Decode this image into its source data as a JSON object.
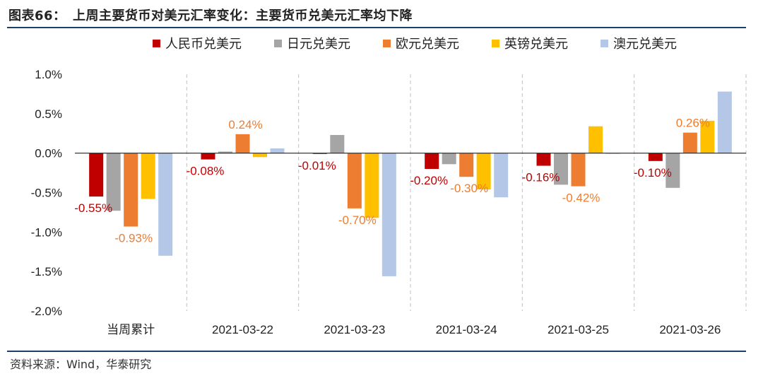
{
  "header": {
    "title": "图表66：　上周主要货币对美元汇率变化：主要货币兑美元汇率均下降"
  },
  "footer": {
    "source": "资料来源：Wind，华泰研究"
  },
  "colors": {
    "rmb": "#c00000",
    "jpy": "#a5a5a5",
    "eur": "#ed7d31",
    "gbp": "#ffc000",
    "aud": "#b4c7e7"
  },
  "chart_data": {
    "type": "bar",
    "title": "上周主要货币对美元汇率变化：主要货币兑美元汇率均下降",
    "categories": [
      "当周累计",
      "2021-03-22",
      "2021-03-23",
      "2021-03-24",
      "2021-03-25",
      "2021-03-26"
    ],
    "ylim": [
      -2.0,
      1.0
    ],
    "yticks": [
      1.0,
      0.5,
      0.0,
      -0.5,
      -1.0,
      -1.5,
      -2.0
    ],
    "ytick_labels": [
      "1.0%",
      "0.5%",
      "0.0%",
      "-0.5%",
      "-1.0%",
      "-1.5%",
      "-2.0%"
    ],
    "xlabel": "",
    "ylabel": "",
    "legend_position": "top",
    "series": [
      {
        "name": "人民币兑美元",
        "color": "#c00000",
        "values": [
          -0.55,
          -0.08,
          -0.01,
          -0.2,
          -0.16,
          -0.1
        ]
      },
      {
        "name": "日元兑美元",
        "color": "#a5a5a5",
        "values": [
          -0.73,
          0.02,
          0.23,
          -0.14,
          -0.4,
          -0.44
        ]
      },
      {
        "name": "欧元兑美元",
        "color": "#ed7d31",
        "values": [
          -0.93,
          0.24,
          -0.7,
          -0.3,
          -0.42,
          0.26
        ]
      },
      {
        "name": "英镑兑美元",
        "color": "#ffc000",
        "values": [
          -0.58,
          -0.05,
          -0.82,
          -0.46,
          0.34,
          0.41
        ]
      },
      {
        "name": "澳元兑美元",
        "color": "#b4c7e7",
        "values": [
          -1.3,
          0.06,
          -1.56,
          -0.56,
          0.0,
          0.78
        ]
      }
    ],
    "data_labels": [
      {
        "series": 0,
        "category": 0,
        "text": "-0.55%"
      },
      {
        "series": 2,
        "category": 0,
        "text": "-0.93%"
      },
      {
        "series": 2,
        "category": 1,
        "text": "0.24%"
      },
      {
        "series": 0,
        "category": 1,
        "text": "-0.08%"
      },
      {
        "series": 0,
        "category": 2,
        "text": "-0.01%"
      },
      {
        "series": 2,
        "category": 2,
        "text": "-0.70%"
      },
      {
        "series": 0,
        "category": 3,
        "text": "-0.20%"
      },
      {
        "series": 2,
        "category": 3,
        "text": "-0.30%"
      },
      {
        "series": 0,
        "category": 4,
        "text": "-0.16%"
      },
      {
        "series": 2,
        "category": 4,
        "text": "-0.42%"
      },
      {
        "series": 2,
        "category": 5,
        "text": "0.26%"
      },
      {
        "series": 0,
        "category": 5,
        "text": "-0.10%"
      }
    ]
  }
}
